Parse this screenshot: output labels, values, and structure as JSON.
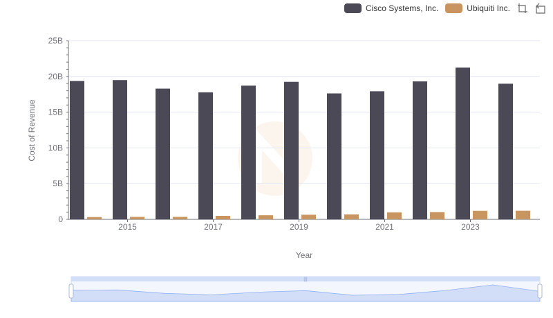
{
  "chart_data": {
    "type": "bar",
    "title": "",
    "xlabel": "Year",
    "ylabel": "Cost of Revenue",
    "ylim": [
      0,
      25000000000
    ],
    "y_ticks": [
      "0",
      "5B",
      "10B",
      "15B",
      "20B",
      "25B"
    ],
    "x_tick_labels": [
      "2015",
      "2017",
      "2019",
      "2021",
      "2023"
    ],
    "categories": [
      "2014",
      "2015",
      "2016",
      "2017",
      "2018",
      "2019",
      "2020",
      "2021",
      "2022",
      "2023",
      "2024"
    ],
    "series": [
      {
        "name": "Cisco Systems, Inc.",
        "color": "#4a4955",
        "values": [
          19370000000,
          19480000000,
          18290000000,
          17780000000,
          18720000000,
          19240000000,
          17620000000,
          17920000000,
          19310000000,
          21250000000,
          18980000000
        ]
      },
      {
        "name": "Ubiquiti Inc.",
        "color": "#c8945f",
        "values": [
          320000000,
          350000000,
          350000000,
          480000000,
          570000000,
          650000000,
          700000000,
          980000000,
          1020000000,
          1190000000,
          1200000000
        ]
      }
    ],
    "legend_position": "top-right",
    "grid": true
  },
  "toolbox": {
    "zoom_icon": "zoom-icon",
    "restore_icon": "restore-icon"
  }
}
